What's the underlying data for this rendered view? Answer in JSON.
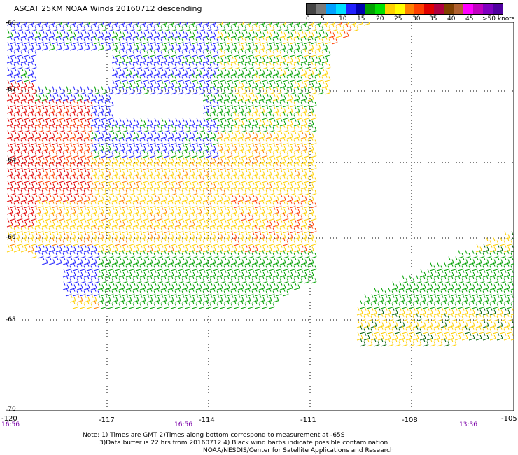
{
  "title": "ASCAT 25KM NOAA Winds 20160712 descending",
  "legend": {
    "colors": [
      "#444444",
      "#7a7a7a",
      "#00a0ff",
      "#00e0ff",
      "#2020ff",
      "#0000b0",
      "#00a000",
      "#00e000",
      "#ffd000",
      "#ffff00",
      "#ff8000",
      "#ff4000",
      "#e00000",
      "#b00040",
      "#804000",
      "#b06030",
      "#ff00ff",
      "#c000c0",
      "#8000c0",
      "#5000a0"
    ],
    "labels": [
      "0",
      "5",
      "10",
      "15",
      "20",
      "25",
      "30",
      "35",
      "40",
      "45",
      ">50 knots"
    ]
  },
  "map": {
    "lat_labels": [
      "-60",
      "-62",
      "-64",
      "-66",
      "-68",
      "-70"
    ],
    "lon_labels": [
      "-120",
      "-117",
      "-114",
      "-111",
      "-108",
      "-105"
    ],
    "time_labels": [
      "16:56",
      "16:56",
      "13:36"
    ]
  },
  "notes": {
    "line1": "Note: 1) Times are GMT 2)Times along bottom correspond to measurement at -65S",
    "line2": "3)Data buffer is 22 hrs from 20160712 4) Black wind barbs indicate possible contamination",
    "line3": "NOAA/NESDIS/Center for Satellite Applications and Research"
  }
}
